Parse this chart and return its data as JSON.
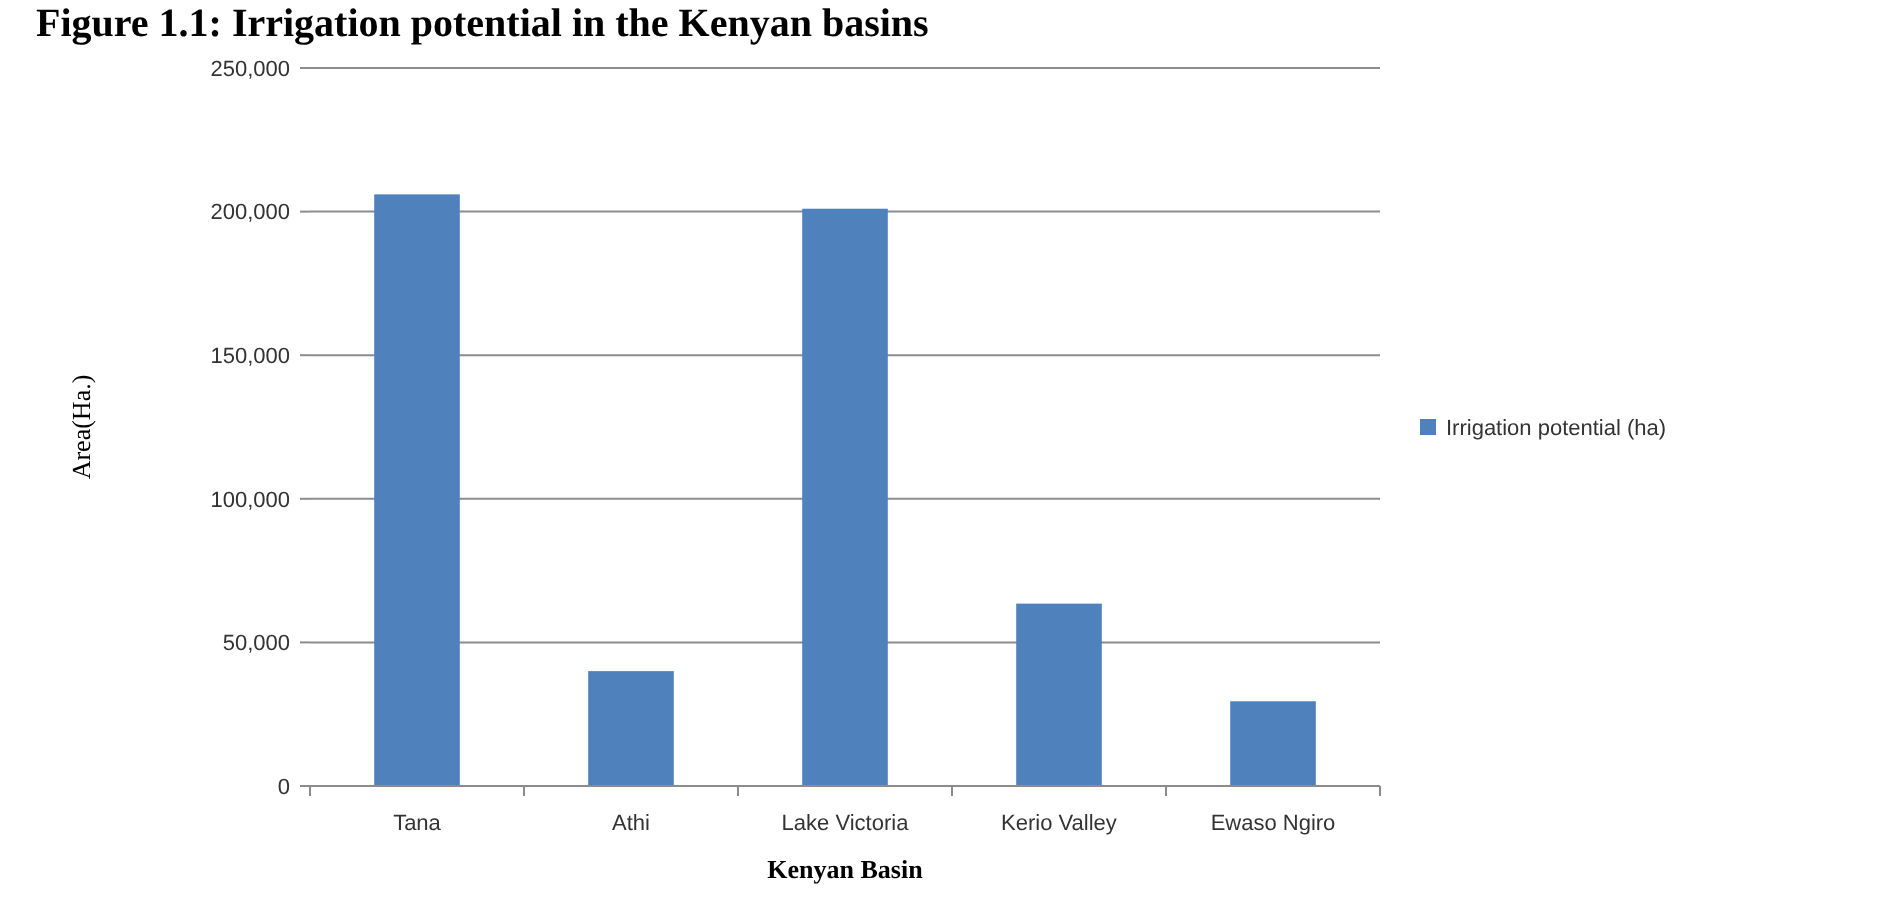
{
  "chart_data": {
    "type": "bar",
    "title": "Figure 1.1: Irrigation potential in the Kenyan basins",
    "xlabel": "Kenyan Basin",
    "ylabel": "Area(Ha.)",
    "categories": [
      "Tana",
      "Athi",
      "Lake Victoria",
      "Kerio Valley",
      "Ewaso Ngiro"
    ],
    "series": [
      {
        "name": "Irrigation potential (ha)",
        "color": "#4f81bd",
        "values": [
          206000,
          40000,
          201000,
          63500,
          29500
        ]
      }
    ],
    "ylim": [
      0,
      250000
    ],
    "yticks": [
      {
        "value": 0,
        "label": "0"
      },
      {
        "value": 50000,
        "label": "50,000"
      },
      {
        "value": 100000,
        "label": "100,000"
      },
      {
        "value": 150000,
        "label": "150,000"
      },
      {
        "value": 200000,
        "label": "200,000"
      },
      {
        "value": 250000,
        "label": "250,000"
      }
    ],
    "grid": "y",
    "legend": "right"
  }
}
